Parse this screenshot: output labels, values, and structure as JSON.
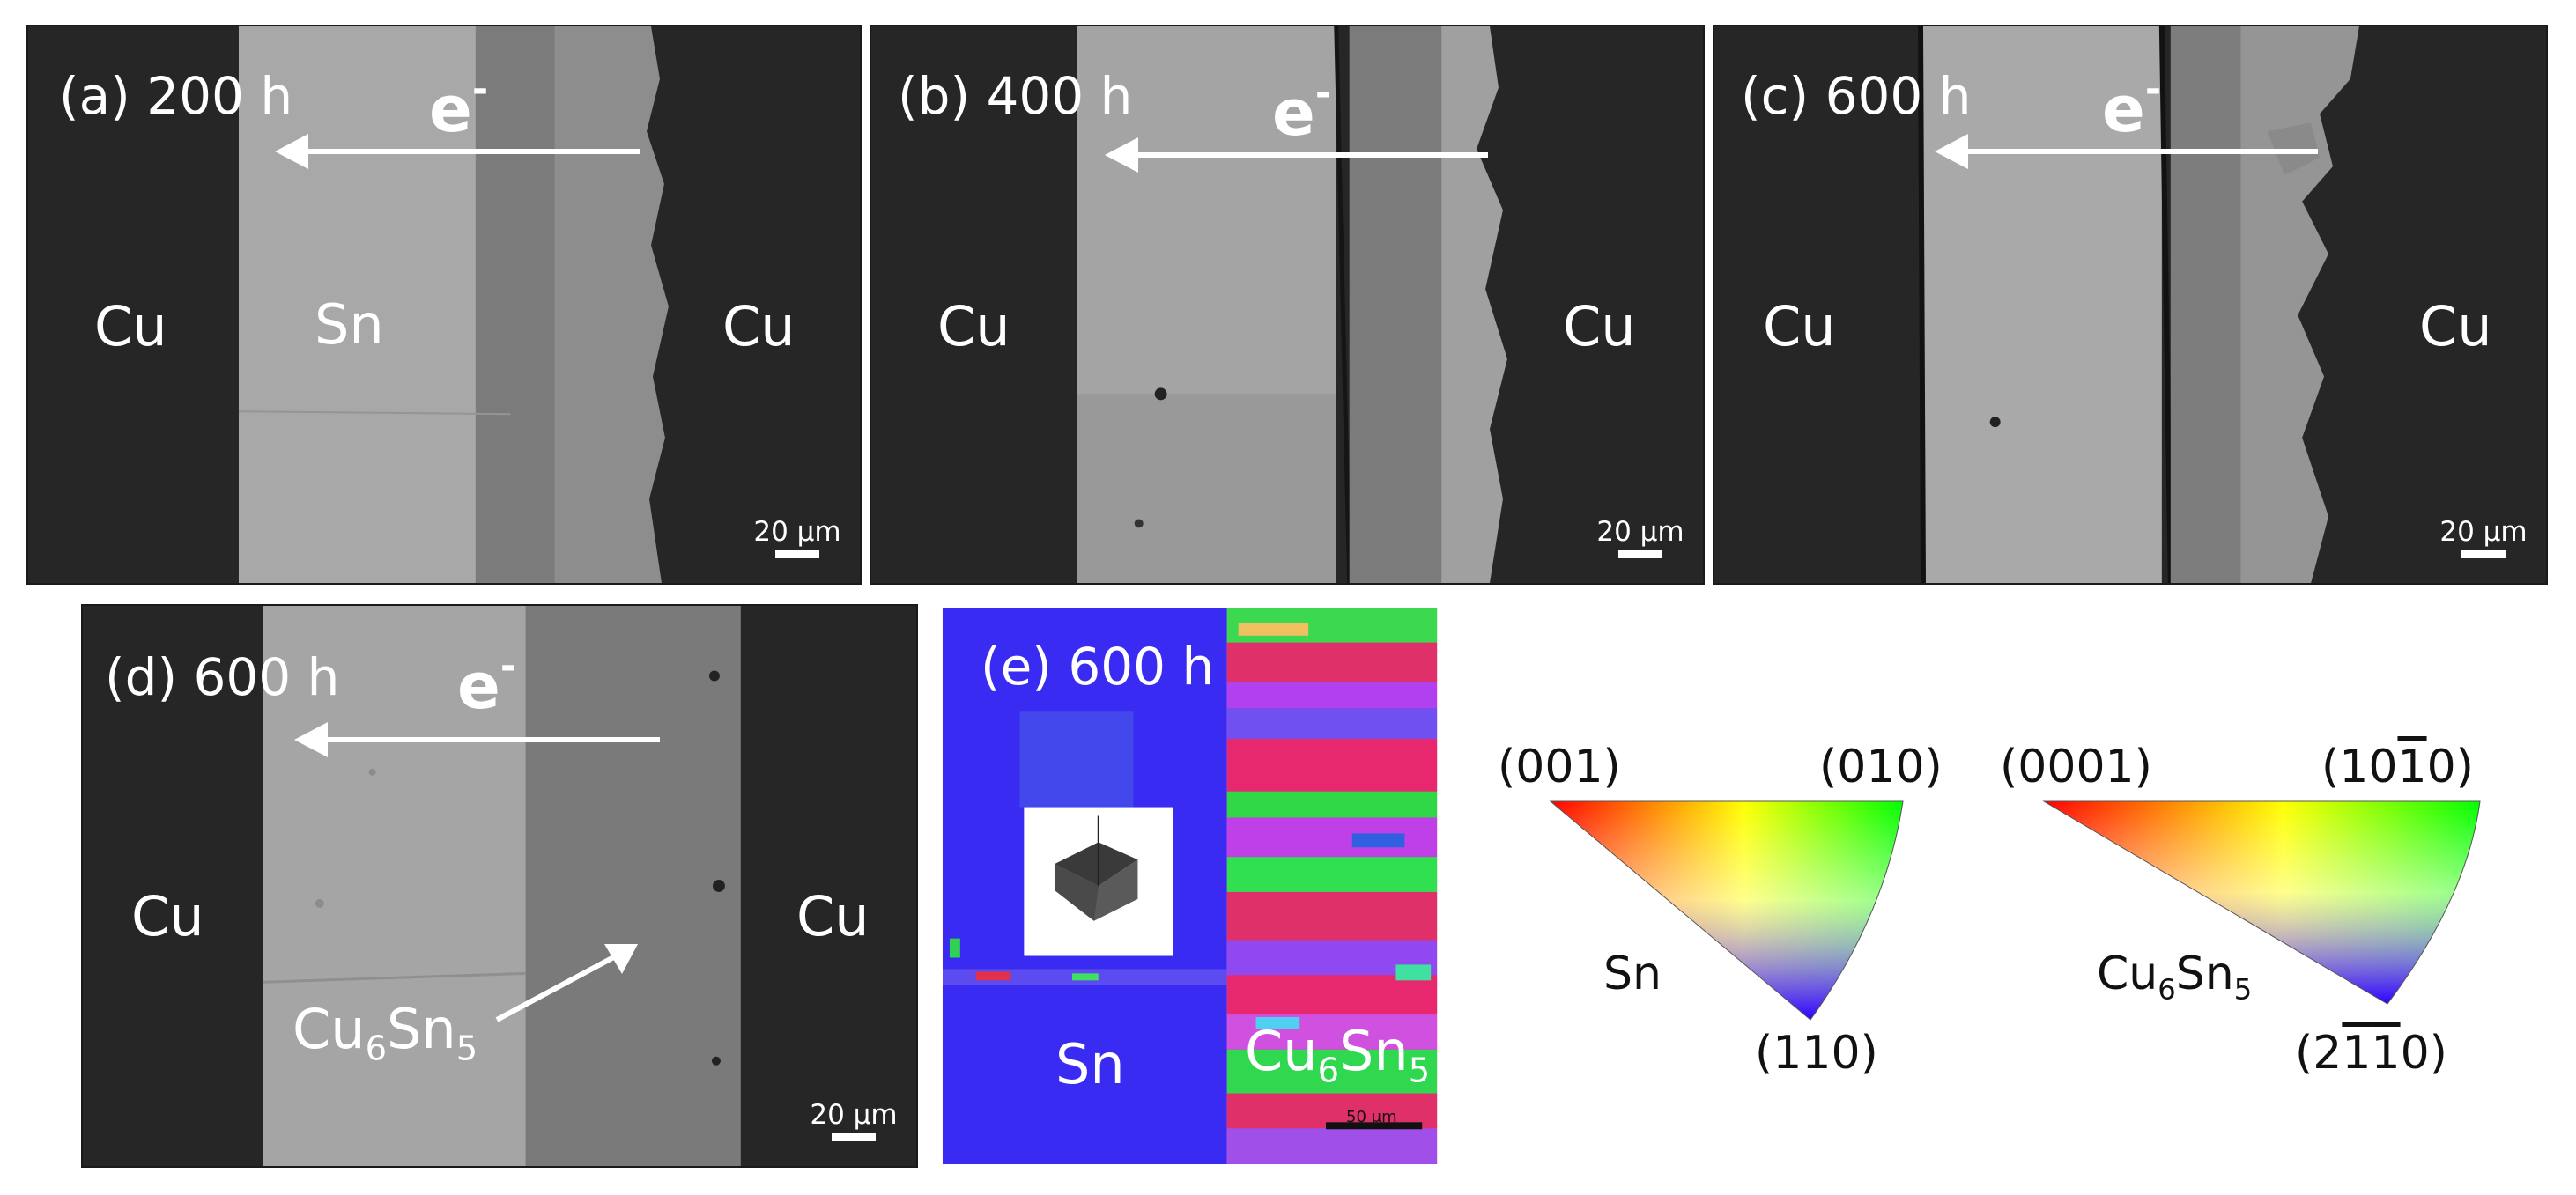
{
  "panels": {
    "a": {
      "label": "(a) 200 h",
      "left_material": "Cu",
      "middle_material": "Sn",
      "right_material": "Cu",
      "electron": "e",
      "electron_sup": "-",
      "scale": "20 μm"
    },
    "b": {
      "label": "(b) 400 h",
      "left_material": "Cu",
      "right_material": "Cu",
      "electron": "e",
      "electron_sup": "-",
      "scale": "20 μm"
    },
    "c": {
      "label": "(c) 600 h",
      "left_material": "Cu",
      "right_material": "Cu",
      "electron": "e",
      "electron_sup": "-",
      "scale": "20 μm"
    },
    "d": {
      "label": "(d) 600 h",
      "left_material": "Cu",
      "right_material": "Cu",
      "electron": "e",
      "electron_sup": "-",
      "scale": "20 μm",
      "imc": {
        "base": "Cu",
        "sub1": "6",
        "mid": "Sn",
        "sub2": "5"
      }
    },
    "e": {
      "label": "(e) 600 h",
      "left_material": "Sn",
      "scale": "50 μm",
      "imc": {
        "base": "Cu",
        "sub1": "6",
        "mid": "Sn",
        "sub2": "5"
      }
    }
  },
  "ipf_keys": {
    "sn": {
      "material": "Sn",
      "corner_top_left": "(001)",
      "corner_top_right": "(010)",
      "corner_bottom": "(110)"
    },
    "cu6sn5": {
      "material": {
        "base": "Cu",
        "sub1": "6",
        "mid": "Sn",
        "sub2": "5"
      },
      "corner_top_left": "(0001)",
      "corner_top_right": {
        "pre": "(10",
        "bar": "1",
        "post": "0)"
      },
      "corner_bottom": {
        "pre": "(2",
        "bar1": "1",
        "bar2": "1",
        "post": "0)"
      }
    }
  },
  "colors": {
    "cu": "#272727",
    "sn": "#a6a6a6",
    "imc": "#7a7a7a",
    "sn_ipf": "#3b2cf2"
  }
}
